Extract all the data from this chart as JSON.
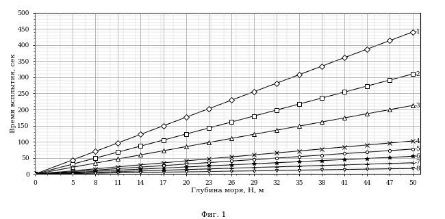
{
  "xlabel": "Глубина моря, Н, м",
  "ylabel": "Время всплытия, сек",
  "figcaption": "Фиг. 1",
  "x_ticks": [
    0,
    5,
    8,
    11,
    14,
    17,
    20,
    23,
    26,
    29,
    32,
    35,
    38,
    41,
    44,
    47,
    50
  ],
  "x_range": [
    0,
    51
  ],
  "y_range": [
    0,
    500
  ],
  "y_ticks": [
    0,
    50,
    100,
    150,
    200,
    250,
    300,
    350,
    400,
    450,
    500
  ],
  "curves": [
    {
      "label": "1",
      "marker": "D",
      "marker_size": 4,
      "color": "#000000",
      "slope": 8.8
    },
    {
      "label": "2",
      "marker": "s",
      "marker_size": 4,
      "color": "#000000",
      "slope": 6.2
    },
    {
      "label": "3",
      "marker": "^",
      "marker_size": 4,
      "color": "#000000",
      "slope": 4.25
    },
    {
      "label": "4",
      "marker": "x",
      "marker_size": 4,
      "color": "#000000",
      "slope": 2.05
    },
    {
      "label": "5",
      "marker": "o",
      "marker_size": 3,
      "color": "#000000",
      "slope": 1.55
    },
    {
      "label": "6",
      "marker": "*",
      "marker_size": 4,
      "color": "#000000",
      "slope": 1.1
    },
    {
      "label": "7",
      "marker": "+",
      "marker_size": 4,
      "color": "#000000",
      "slope": 0.7
    },
    {
      "label": "8",
      "marker": "v",
      "marker_size": 3,
      "color": "#000000",
      "slope": 0.35
    }
  ],
  "background_color": "#ffffff",
  "grid_major_color": "#999999",
  "grid_minor_color": "#cccccc",
  "line_width": 0.8
}
